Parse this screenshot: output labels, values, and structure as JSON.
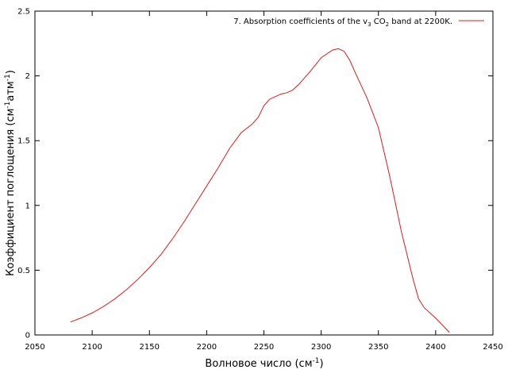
{
  "chart_data": {
    "type": "line",
    "xlabel": "Волновое число (см",
    "xlabel_sup": "-1",
    "xlabel_end": ")",
    "ylabel": "Коэффициент поглощения (см",
    "ylabel_sup1": "-1",
    "ylabel_mid": "атм",
    "ylabel_sup2": "-1",
    "ylabel_end": ")",
    "xlim": [
      2050,
      2450
    ],
    "ylim": [
      0,
      2.5
    ],
    "xticks": [
      2050,
      2100,
      2150,
      2200,
      2250,
      2300,
      2350,
      2400,
      2450
    ],
    "yticks": [
      0,
      0.5,
      1,
      1.5,
      2,
      2.5
    ],
    "ytick_labels": [
      "0",
      "0.5",
      "1",
      "1.5",
      "2",
      "2.5"
    ],
    "legend_position": "top-right",
    "grid": false,
    "series": [
      {
        "legend_prefix": "7. Absorption coefficients of the v",
        "legend_sub1": "3",
        "legend_mid": " CO",
        "legend_sub2": "2",
        "legend_suffix": " band at 2200K.",
        "color": "#e41a1c",
        "x": [
          2081,
          2090,
          2100,
          2110,
          2120,
          2130,
          2140,
          2150,
          2160,
          2170,
          2180,
          2190,
          2200,
          2210,
          2220,
          2230,
          2240,
          2245,
          2250,
          2255,
          2260,
          2265,
          2270,
          2275,
          2280,
          2290,
          2300,
          2310,
          2315,
          2320,
          2325,
          2330,
          2340,
          2350,
          2360,
          2370,
          2380,
          2385,
          2390,
          2400,
          2412
        ],
        "y": [
          0.1,
          0.13,
          0.17,
          0.22,
          0.28,
          0.35,
          0.43,
          0.52,
          0.62,
          0.74,
          0.87,
          1.01,
          1.15,
          1.29,
          1.44,
          1.56,
          1.63,
          1.68,
          1.77,
          1.82,
          1.84,
          1.86,
          1.87,
          1.89,
          1.93,
          2.03,
          2.14,
          2.2,
          2.21,
          2.19,
          2.12,
          2.02,
          1.83,
          1.6,
          1.22,
          0.8,
          0.44,
          0.28,
          0.21,
          0.13,
          0.02
        ]
      }
    ]
  }
}
